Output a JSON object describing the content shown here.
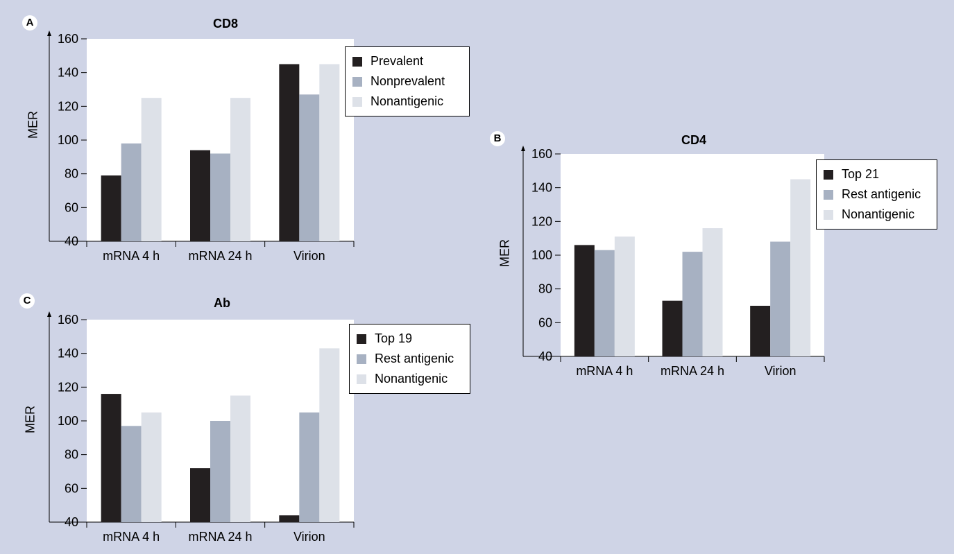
{
  "colors": {
    "background": "#cfd4e6",
    "plot_area": "#ffffff",
    "series": [
      "#231f20",
      "#a7b1c2",
      "#dde1e8"
    ]
  },
  "chart_data": [
    {
      "panel_label": "A",
      "type": "bar",
      "title": "CD8",
      "ylabel": "MER",
      "xlabel": "",
      "categories": [
        "mRNA 4 h",
        "mRNA 24 h",
        "Virion"
      ],
      "ylim": [
        40,
        160
      ],
      "yticks": [
        40,
        60,
        80,
        100,
        120,
        140,
        160
      ],
      "grid": false,
      "legend_position": "top-right",
      "series": [
        {
          "name": "Prevalent",
          "values": [
            79,
            94,
            145
          ]
        },
        {
          "name": "Nonprevalent",
          "values": [
            98,
            92,
            127
          ]
        },
        {
          "name": "Nonantigenic",
          "values": [
            125,
            125,
            145
          ]
        }
      ]
    },
    {
      "panel_label": "B",
      "type": "bar",
      "title": "CD4",
      "ylabel": "MER",
      "xlabel": "",
      "categories": [
        "mRNA 4 h",
        "mRNA 24 h",
        "Virion"
      ],
      "ylim": [
        40,
        160
      ],
      "yticks": [
        40,
        60,
        80,
        100,
        120,
        140,
        160
      ],
      "grid": false,
      "legend_position": "top-right",
      "series": [
        {
          "name": "Top 21",
          "values": [
            106,
            73,
            70
          ]
        },
        {
          "name": "Rest antigenic",
          "values": [
            103,
            102,
            108
          ]
        },
        {
          "name": "Nonantigenic",
          "values": [
            111,
            116,
            145
          ]
        }
      ]
    },
    {
      "panel_label": "C",
      "type": "bar",
      "title": "Ab",
      "ylabel": "MER",
      "xlabel": "",
      "categories": [
        "mRNA 4 h",
        "mRNA 24 h",
        "Virion"
      ],
      "ylim": [
        40,
        160
      ],
      "yticks": [
        40,
        60,
        80,
        100,
        120,
        140,
        160
      ],
      "grid": false,
      "legend_position": "top-right",
      "series": [
        {
          "name": "Top 19",
          "values": [
            116,
            72,
            44
          ]
        },
        {
          "name": "Rest antigenic",
          "values": [
            97,
            100,
            105
          ]
        },
        {
          "name": "Nonantigenic",
          "values": [
            105,
            115,
            143
          ]
        }
      ]
    }
  ]
}
